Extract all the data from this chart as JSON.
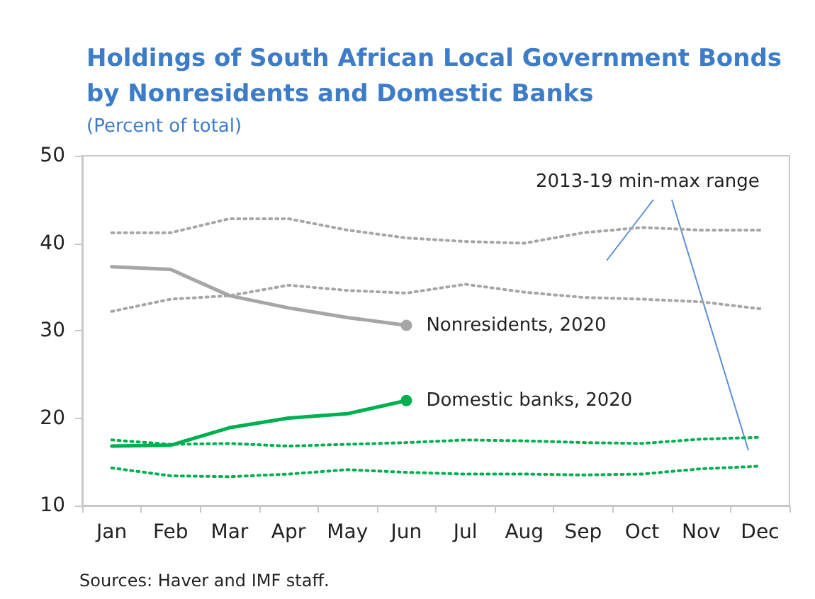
{
  "chart_data": {
    "type": "line",
    "title": "Holdings of South African Local Government Bonds\nby Nonresidents and Domestic Banks",
    "subtitle": "(Percent of total)",
    "categories": [
      "Jan",
      "Feb",
      "Mar",
      "Apr",
      "May",
      "Jun",
      "Jul",
      "Aug",
      "Sep",
      "Oct",
      "Nov",
      "Dec"
    ],
    "series": [
      {
        "color": "#a6a6a6",
        "line_style": "dotted",
        "values": [
          41.2,
          41.2,
          42.8,
          42.8,
          41.5,
          40.6,
          40.2,
          40.0,
          41.2,
          41.8,
          41.5,
          41.5
        ]
      },
      {
        "color": "#a6a6a6",
        "line_style": "dotted",
        "values": [
          32.2,
          33.6,
          34.0,
          35.2,
          34.6,
          34.3,
          35.3,
          34.4,
          33.8,
          33.6,
          33.3,
          32.5
        ]
      },
      {
        "color": "#00b050",
        "line_style": "dotted",
        "values": [
          17.5,
          17.0,
          17.1,
          16.8,
          17.0,
          17.2,
          17.5,
          17.4,
          17.2,
          17.1,
          17.6,
          17.8
        ]
      },
      {
        "color": "#00b050",
        "line_style": "dotted",
        "values": [
          14.3,
          13.4,
          13.3,
          13.6,
          14.1,
          13.8,
          13.6,
          13.6,
          13.5,
          13.6,
          14.2,
          14.5
        ]
      },
      {
        "name": "Nonresidents, 2020",
        "color": "#a6a6a6",
        "line_style": "solid",
        "values": [
          37.3,
          37.0,
          34.0,
          32.6,
          31.5,
          30.6,
          null,
          null,
          null,
          null,
          null,
          null
        ]
      },
      {
        "name": "Domestic banks, 2020",
        "color": "#00b050",
        "line_style": "solid",
        "values": [
          16.8,
          16.9,
          18.9,
          20.0,
          20.5,
          22.0,
          null,
          null,
          null,
          null,
          null,
          null
        ]
      }
    ],
    "ylim": [
      10,
      50
    ],
    "yticks": [
      10,
      20,
      30,
      40,
      50
    ],
    "grid": false,
    "legend": false,
    "annotations": [
      "2013-19 min-max range",
      "Sources: Haver and IMF staff."
    ]
  }
}
